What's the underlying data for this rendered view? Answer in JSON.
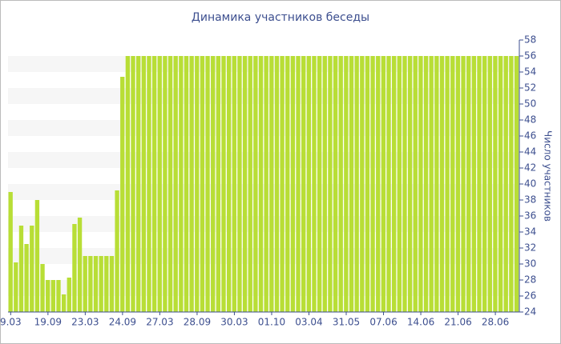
{
  "chart_data": {
    "type": "bar",
    "title": "Динамика участников беседы",
    "y_label": "Число участников",
    "categories": [
      "9.03",
      null,
      null,
      null,
      null,
      null,
      null,
      "19.09",
      null,
      null,
      null,
      null,
      null,
      null,
      "23.03",
      null,
      null,
      null,
      null,
      null,
      null,
      "24.09",
      null,
      null,
      null,
      null,
      null,
      null,
      "27.03",
      null,
      null,
      null,
      null,
      null,
      null,
      "28.09",
      null,
      null,
      null,
      null,
      null,
      null,
      "30.03",
      null,
      null,
      null,
      null,
      null,
      null,
      "01.10",
      null,
      null,
      null,
      null,
      null,
      null,
      "03.04",
      null,
      null,
      null,
      null,
      null,
      null,
      "31.05",
      null,
      null,
      null,
      null,
      null,
      null,
      "07.06",
      null,
      null,
      null,
      null,
      null,
      null,
      "14.06",
      null,
      null,
      null,
      null,
      null,
      null,
      "21.06",
      null,
      null,
      null,
      null,
      null,
      null,
      "28.06",
      null,
      null,
      null,
      null
    ],
    "values": [
      39,
      30.2,
      34.8,
      32.5,
      34.8,
      38,
      30,
      28,
      28,
      28,
      26.2,
      28.3,
      35,
      35.8,
      31,
      31,
      31,
      31,
      31,
      31,
      39.2,
      53.4,
      56,
      56,
      56,
      56,
      56,
      56,
      56,
      56,
      56,
      56,
      56,
      56,
      56,
      56,
      56,
      56,
      56,
      56,
      56,
      56,
      56,
      56,
      56,
      56,
      56,
      56,
      56,
      56,
      56,
      56,
      56,
      56,
      56,
      56,
      56,
      56,
      56,
      56,
      56,
      56,
      56,
      56,
      56,
      56,
      56,
      56,
      56,
      56,
      56,
      56,
      56,
      56,
      56,
      56,
      56,
      56,
      56,
      56,
      56,
      56,
      56,
      56,
      56,
      56,
      56,
      56,
      56,
      56,
      56,
      56,
      56,
      56,
      56,
      56
    ],
    "color": "#b8de36",
    "ylim": [
      24,
      58
    ],
    "yticks": [
      24,
      26,
      28,
      30,
      32,
      34,
      36,
      38,
      40,
      42,
      44,
      46,
      48,
      50,
      52,
      54,
      56,
      58
    ]
  }
}
